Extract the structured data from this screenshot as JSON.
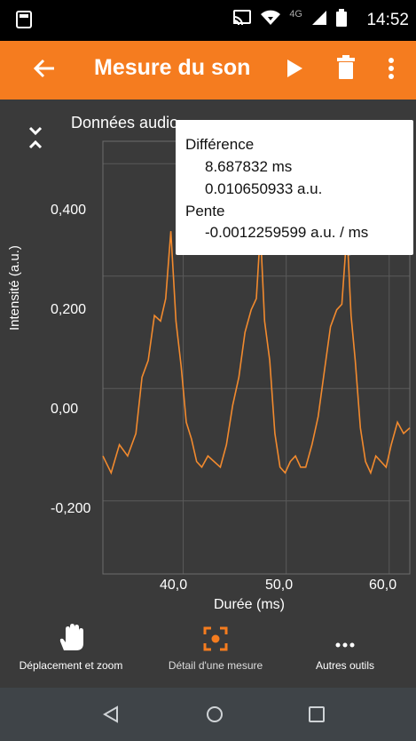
{
  "status_bar": {
    "time": "14:52",
    "network": "4G"
  },
  "app_bar": {
    "title": "Mesure du son"
  },
  "graph": {
    "title": "Données audio",
    "ylabel": "Intensité (a.u.)",
    "xlabel": "Durée (ms)",
    "yticks": [
      "0,400",
      "0,200",
      "0,00",
      "-0,200"
    ],
    "xticks": [
      "40,0",
      "50,0",
      "60,0"
    ],
    "tooltip": {
      "heading": "Différence",
      "dx": "8.687832 ms",
      "dy": "0.010650933 a.u.",
      "slope_heading": "Pente",
      "slope": "-0.0012259599 a.u. /  ms"
    },
    "line_color": "#f28a2e"
  },
  "chart_data": {
    "type": "line",
    "xlabel": "Durée (ms)",
    "ylabel": "Intensité (a.u.)",
    "xlim": [
      32.2,
      62.0
    ],
    "ylim": [
      -0.33,
      0.44
    ],
    "grid": true,
    "series": [
      {
        "x": [
          32.2,
          33.0,
          33.8,
          34.6,
          35.4,
          36.0,
          36.6,
          37.2,
          37.8,
          38.3,
          38.8,
          39.3,
          39.8,
          40.3,
          40.8,
          41.3,
          41.8,
          42.4,
          43.0,
          43.6,
          44.2,
          44.8,
          45.4,
          46.0,
          46.6,
          47.1,
          47.5,
          47.9,
          48.4,
          48.9,
          49.4,
          49.9,
          50.4,
          50.9,
          51.4,
          51.9,
          52.5,
          53.1,
          53.7,
          54.3,
          54.9,
          55.4,
          55.9,
          56.3,
          56.7,
          57.2,
          57.7,
          58.2,
          58.7,
          59.2,
          59.7,
          60.2,
          60.8,
          61.4,
          62.0
        ],
        "y": [
          -0.12,
          -0.15,
          -0.1,
          -0.12,
          -0.08,
          0.02,
          0.05,
          0.13,
          0.12,
          0.16,
          0.28,
          0.12,
          0.04,
          -0.06,
          -0.09,
          -0.13,
          -0.14,
          -0.12,
          -0.13,
          -0.14,
          -0.1,
          -0.03,
          0.02,
          0.1,
          0.14,
          0.16,
          0.28,
          0.12,
          0.05,
          -0.08,
          -0.14,
          -0.15,
          -0.13,
          -0.12,
          -0.14,
          -0.14,
          -0.1,
          -0.05,
          0.03,
          0.11,
          0.14,
          0.15,
          0.28,
          0.13,
          0.05,
          -0.07,
          -0.13,
          -0.15,
          -0.12,
          -0.13,
          -0.14,
          -0.1,
          -0.06,
          -0.08,
          -0.07
        ]
      }
    ],
    "markers": [
      {
        "x": 47.4,
        "y": 0.262
      },
      {
        "x": 56.1,
        "y": 0.251
      }
    ]
  },
  "tools": [
    {
      "label": "Déplacement et zoom",
      "icon": "hand-icon"
    },
    {
      "label": "Détail d'une mesure",
      "icon": "target-icon"
    },
    {
      "label": "Autres outils",
      "icon": "more-horizontal-icon"
    }
  ]
}
